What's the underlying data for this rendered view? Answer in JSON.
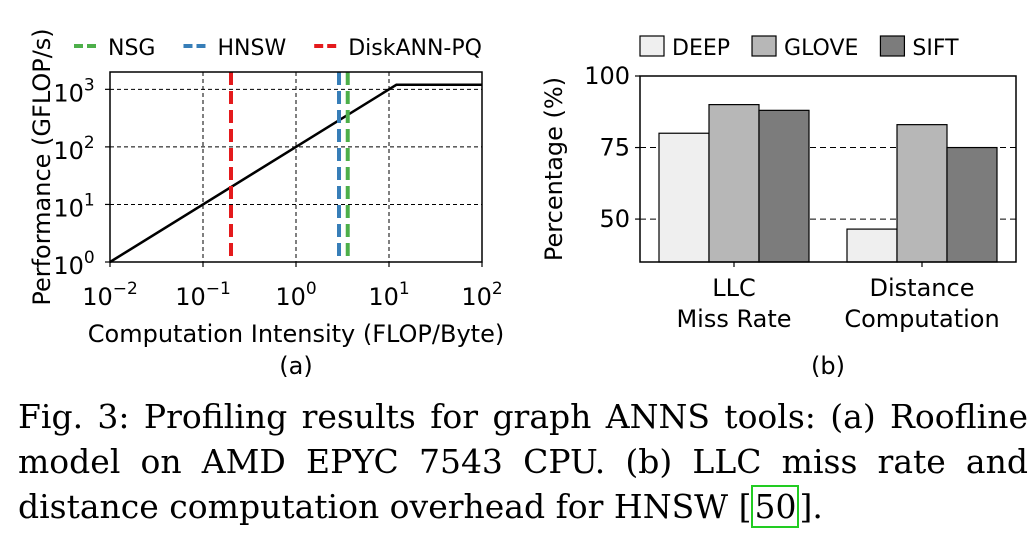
{
  "chart_data": [
    {
      "id": "a",
      "type": "line",
      "panel_label": "(a)",
      "xlabel": "Computation Intensity (FLOP/Byte)",
      "ylabel": "Performance (GFLOP/s)",
      "xscale": "log",
      "yscale": "log",
      "xlim": [
        0.01,
        100
      ],
      "ylim": [
        1,
        2000
      ],
      "x_ticks": [
        {
          "value": 0.01,
          "base": "10",
          "exp": "−2"
        },
        {
          "value": 0.1,
          "base": "10",
          "exp": "−1"
        },
        {
          "value": 1,
          "base": "10",
          "exp": "0"
        },
        {
          "value": 10,
          "base": "10",
          "exp": "1"
        },
        {
          "value": 100,
          "base": "10",
          "exp": "2"
        }
      ],
      "y_ticks": [
        {
          "value": 1,
          "base": "10",
          "exp": "0"
        },
        {
          "value": 10,
          "base": "10",
          "exp": "1"
        },
        {
          "value": 100,
          "base": "10",
          "exp": "2"
        },
        {
          "value": 1000,
          "base": "10",
          "exp": "3"
        }
      ],
      "grid": true,
      "legend_position": "top",
      "roofline": {
        "x": [
          0.01,
          12,
          100
        ],
        "y": [
          1,
          1200,
          1200
        ],
        "color": "#000000"
      },
      "vlines": [
        {
          "name": "NSG",
          "x": 3.6,
          "color": "#4daf4a"
        },
        {
          "name": "HNSW",
          "x": 2.9,
          "color": "#377eb8"
        },
        {
          "name": "DiskANN-PQ",
          "x": 0.2,
          "color": "#e41a1c"
        }
      ]
    },
    {
      "id": "b",
      "type": "bar",
      "panel_label": "(b)",
      "ylabel": "Percentage (%)",
      "ylim": [
        35,
        100
      ],
      "y_ticks": [
        50,
        75,
        100
      ],
      "hgrid": [
        50,
        75
      ],
      "legend_position": "top",
      "categories": [
        [
          "LLC",
          "Miss Rate"
        ],
        [
          "Distance",
          "Computation"
        ]
      ],
      "series": [
        {
          "name": "DEEP",
          "values": [
            80,
            46.5
          ],
          "color": "#efefef"
        },
        {
          "name": "GLOVE",
          "values": [
            90,
            83
          ],
          "color": "#b7b7b7"
        },
        {
          "name": "SIFT",
          "values": [
            88,
            75
          ],
          "color": "#7c7c7c"
        }
      ]
    }
  ],
  "caption": {
    "text_before": "Fig. 3: Profiling results for graph ANNS tools: (a) Roofline model on AMD EPYC 7543 CPU. (b) LLC miss rate and distance computation overhead for HNSW [",
    "ref": "50",
    "text_after": "]."
  }
}
